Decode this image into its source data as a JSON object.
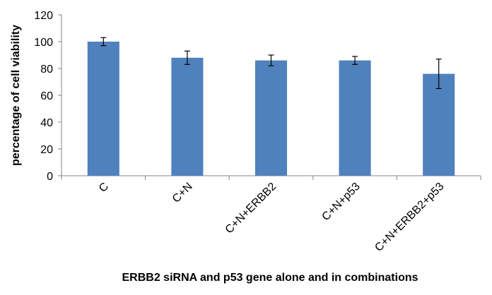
{
  "chart_data": {
    "type": "bar",
    "title": "",
    "xlabel": "ERBB2 siRNA and p53 gene alone and in combinations",
    "ylabel": "percentage of cell viability",
    "categories": [
      "C",
      "C+N",
      "C+N+ERBB2",
      "C+N+p53",
      "C+N+ERBB2+p53"
    ],
    "values": [
      100,
      88,
      86,
      86,
      76
    ],
    "error_bars": [
      3,
      5,
      4,
      3,
      11
    ],
    "ylim": [
      0,
      120
    ],
    "yticks": [
      0,
      20,
      40,
      60,
      80,
      100,
      120
    ],
    "grid": false,
    "legend": "none",
    "colors": {
      "bar": "#4F81BD",
      "axis": "#868686",
      "error_bar": "#000000"
    }
  }
}
